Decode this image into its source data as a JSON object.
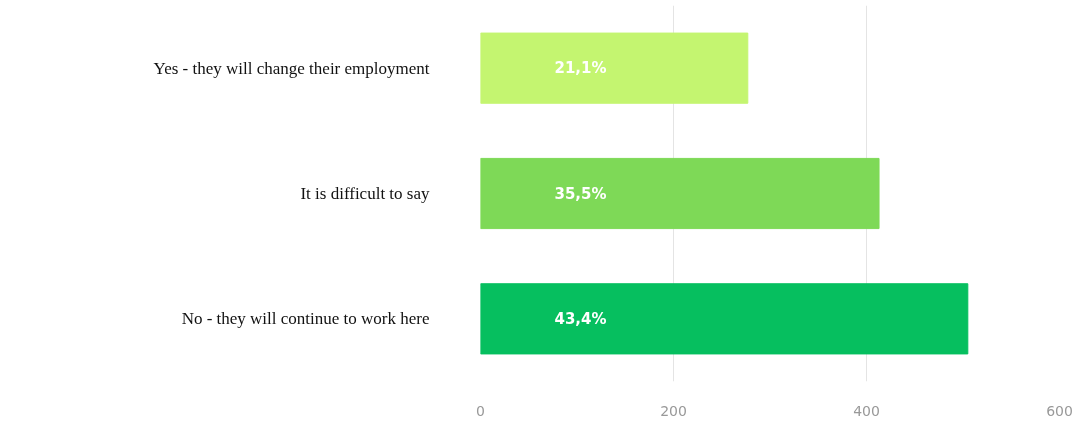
{
  "chart_data": {
    "type": "bar",
    "orientation": "horizontal",
    "categories": [
      "Yes - they will change their employment",
      "It is difficult to say",
      "No - they will continue to work here"
    ],
    "values": [
      277,
      413,
      505
    ],
    "colors": [
      "#c4f570",
      "#7ed957",
      "#06bf5f"
    ],
    "annotations": [
      "21,1%",
      "35,5%",
      "43,4%"
    ],
    "xlim": [
      0,
      600
    ],
    "xticks": [
      0,
      200,
      400,
      600
    ],
    "grid": "x"
  }
}
